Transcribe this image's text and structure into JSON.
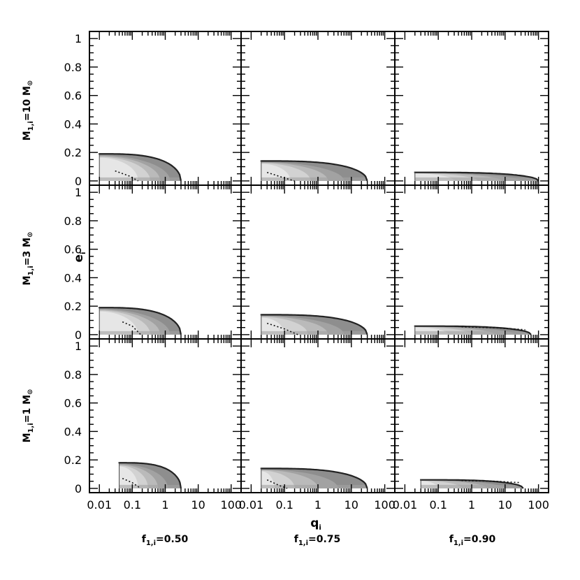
{
  "chart_data": {
    "type": "area",
    "x_axis": {
      "label_main": "q",
      "label_sub": "i",
      "scale": "log",
      "range": [
        0.005,
        200
      ],
      "ticks": [
        0.01,
        0.1,
        1,
        10,
        100
      ],
      "tick_labels": [
        "0.01",
        "0.1",
        "1",
        "10",
        "100"
      ]
    },
    "y_axis": {
      "label_main": "e",
      "label_sub": "i",
      "range": [
        -0.03,
        1.05
      ],
      "ticks": [
        0,
        0.2,
        0.4,
        0.6,
        0.8,
        1
      ],
      "tick_labels": [
        "0",
        "0.2",
        "0.4",
        "0.6",
        "0.8",
        "1"
      ]
    },
    "row_labels": [
      {
        "pre": "M",
        "sub": "1,i",
        "post": "=10 M",
        "sun": "⊙"
      },
      {
        "pre": "M",
        "sub": "1,i",
        "post": "=3 M",
        "sun": "⊙"
      },
      {
        "pre": "M",
        "sub": "1,i",
        "post": "=1 M",
        "sun": "⊙"
      }
    ],
    "column_labels": [
      {
        "pre": "f",
        "sub": "1,i",
        "post": "=0.50"
      },
      {
        "pre": "f",
        "sub": "1,i",
        "post": "=0.75"
      },
      {
        "pre": "f",
        "sub": "1,i",
        "post": "=0.90"
      }
    ],
    "grey_levels": [
      "#e6e6e6",
      "#d2d2d2",
      "#bababa",
      "#a2a2a2",
      "#8e8e8e"
    ],
    "panels": [
      {
        "row": 0,
        "col": 0,
        "q_min": 0.01,
        "q_max": 3.0,
        "e_max": 0.19,
        "e_start": 0.195,
        "dotted": [
          [
            0.03,
            0.07
          ],
          [
            0.08,
            0.035
          ],
          [
            0.15,
            0.0
          ]
        ],
        "level_q": [
          0.15,
          0.35,
          0.7,
          1.4
        ]
      },
      {
        "row": 0,
        "col": 1,
        "q_min": 0.02,
        "q_max": 30.0,
        "e_max": 0.14,
        "e_start": 0.145,
        "dotted": [
          [
            0.03,
            0.06
          ],
          [
            0.1,
            0.02
          ],
          [
            0.2,
            0.0
          ]
        ],
        "level_q": [
          0.15,
          0.6,
          2.0,
          6.0
        ]
      },
      {
        "row": 0,
        "col": 2,
        "q_min": 0.02,
        "q_max": 100.0,
        "e_max": 0.06,
        "e_start": 0.065,
        "dotted": [],
        "level_q": [
          0.3,
          1.5,
          8,
          30
        ]
      },
      {
        "row": 1,
        "col": 0,
        "q_min": 0.01,
        "q_max": 3.0,
        "e_max": 0.19,
        "e_start": 0.195,
        "dotted": [
          [
            0.05,
            0.09
          ],
          [
            0.1,
            0.06
          ],
          [
            0.18,
            0.0
          ]
        ],
        "level_q": [
          0.15,
          0.35,
          0.7,
          1.4
        ]
      },
      {
        "row": 1,
        "col": 1,
        "q_min": 0.02,
        "q_max": 30.0,
        "e_max": 0.14,
        "e_start": 0.145,
        "dotted": [
          [
            0.03,
            0.08
          ],
          [
            0.1,
            0.04
          ],
          [
            0.25,
            0.0
          ]
        ],
        "level_q": [
          0.1,
          0.5,
          2.0,
          6.0
        ]
      },
      {
        "row": 1,
        "col": 2,
        "q_min": 0.02,
        "q_max": 60.0,
        "e_max": 0.06,
        "e_start": 0.065,
        "dotted": [
          [
            0.5,
            0.055
          ],
          [
            5,
            0.048
          ],
          [
            40,
            0.035
          ]
        ],
        "level_q": [
          0.2,
          1.0,
          5,
          20
        ]
      },
      {
        "row": 2,
        "col": 0,
        "q_min": 0.04,
        "q_max": 3.0,
        "e_max": 0.18,
        "e_start": 0.185,
        "dotted": [
          [
            0.05,
            0.07
          ],
          [
            0.1,
            0.04
          ],
          [
            0.18,
            0.0
          ]
        ],
        "level_q": [
          0.15,
          0.3,
          0.6,
          1.2
        ]
      },
      {
        "row": 2,
        "col": 1,
        "q_min": 0.02,
        "q_max": 30.0,
        "e_max": 0.14,
        "e_start": 0.145,
        "dotted": [
          [
            0.03,
            0.06
          ],
          [
            0.07,
            0.02
          ],
          [
            0.12,
            0.0
          ]
        ],
        "level_q": [
          0.05,
          0.2,
          1.0,
          4.0
        ]
      },
      {
        "row": 2,
        "col": 2,
        "q_min": 0.03,
        "q_max": 35.0,
        "e_max": 0.06,
        "e_start": 0.065,
        "dotted": [
          [
            0.5,
            0.055
          ],
          [
            5,
            0.05
          ],
          [
            30,
            0.04
          ]
        ],
        "level_q": [
          0.1,
          0.5,
          3,
          10
        ]
      }
    ]
  }
}
